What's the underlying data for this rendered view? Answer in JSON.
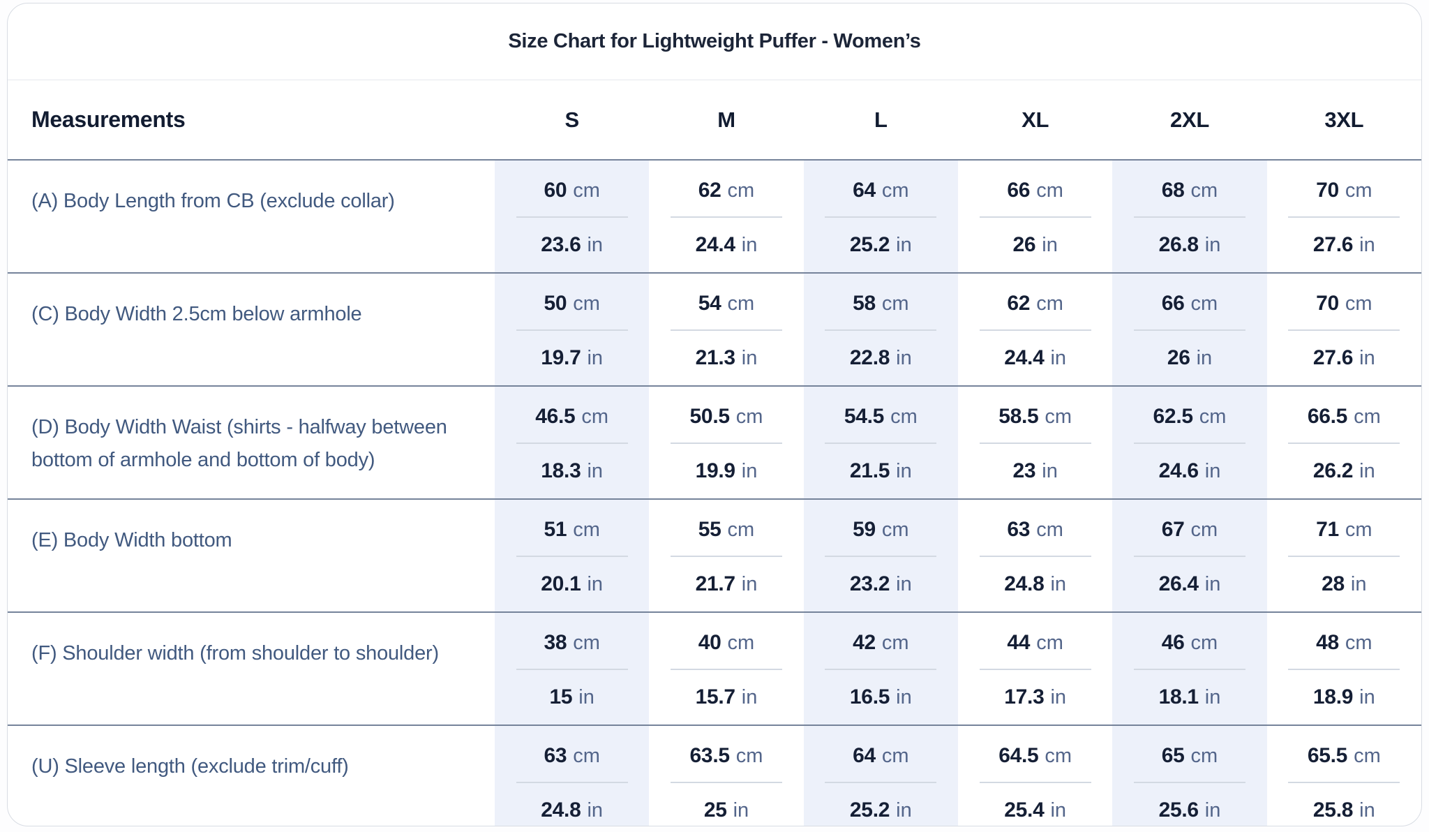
{
  "title": "Size Chart for Lightweight Puffer - Women’s",
  "table": {
    "measurements_header": "Measurements",
    "sizes": [
      "S",
      "M",
      "L",
      "XL",
      "2XL",
      "3XL"
    ],
    "unit_cm": "cm",
    "unit_in": "in",
    "rows": [
      {
        "label": "(A) Body Length from CB (exclude collar)",
        "cm": [
          "60",
          "62",
          "64",
          "66",
          "68",
          "70"
        ],
        "in": [
          "23.6",
          "24.4",
          "25.2",
          "26",
          "26.8",
          "27.6"
        ]
      },
      {
        "label": "(C) Body Width 2.5cm below armhole",
        "cm": [
          "50",
          "54",
          "58",
          "62",
          "66",
          "70"
        ],
        "in": [
          "19.7",
          "21.3",
          "22.8",
          "24.4",
          "26",
          "27.6"
        ]
      },
      {
        "label": "(D) Body Width Waist (shirts - halfway between bottom of armhole and bottom of body)",
        "cm": [
          "46.5",
          "50.5",
          "54.5",
          "58.5",
          "62.5",
          "66.5"
        ],
        "in": [
          "18.3",
          "19.9",
          "21.5",
          "23",
          "24.6",
          "26.2"
        ]
      },
      {
        "label": "(E) Body Width bottom",
        "cm": [
          "51",
          "55",
          "59",
          "63",
          "67",
          "71"
        ],
        "in": [
          "20.1",
          "21.7",
          "23.2",
          "24.8",
          "26.4",
          "28"
        ]
      },
      {
        "label": "(F) Shoulder width (from shoulder to shoulder)",
        "cm": [
          "38",
          "40",
          "42",
          "44",
          "46",
          "48"
        ],
        "in": [
          "15",
          "15.7",
          "16.5",
          "17.3",
          "18.1",
          "18.9"
        ]
      },
      {
        "label": "(U) Sleeve length (exclude trim/cuff)",
        "cm": [
          "63",
          "63.5",
          "64",
          "64.5",
          "65",
          "65.5"
        ],
        "in": [
          "24.8",
          "25",
          "25.2",
          "25.4",
          "25.6",
          "25.8"
        ]
      }
    ]
  },
  "colors": {
    "band_bg": "#edf1fa",
    "row_sep": "#75839a",
    "label_color": "#41597f",
    "num_color": "#151f35",
    "unit_color": "#53658a",
    "title_color": "#1c2538"
  }
}
